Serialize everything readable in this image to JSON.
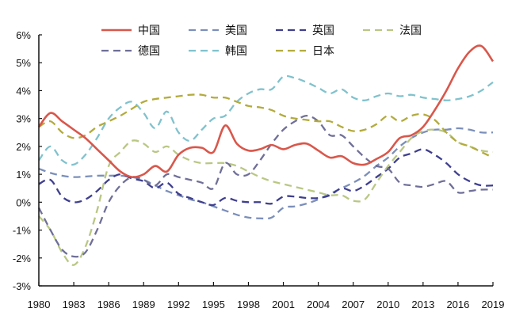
{
  "chart_data": {
    "type": "line",
    "title": "",
    "xlabel": "",
    "ylabel": "",
    "x": [
      1980,
      1981,
      1982,
      1983,
      1984,
      1985,
      1986,
      1987,
      1988,
      1989,
      1990,
      1991,
      1992,
      1993,
      1994,
      1995,
      1996,
      1997,
      1998,
      1999,
      2000,
      2001,
      2002,
      2003,
      2004,
      2005,
      2006,
      2007,
      2008,
      2009,
      2010,
      2011,
      2012,
      2013,
      2014,
      2015,
      2016,
      2017,
      2018,
      2019
    ],
    "x_ticks": [
      "1980",
      "1983",
      "1986",
      "1989",
      "1992",
      "1995",
      "1998",
      "2001",
      "2004",
      "2007",
      "2010",
      "2013",
      "2016",
      "2019"
    ],
    "y_ticks": [
      "6%",
      "5%",
      "4%",
      "3%",
      "2%",
      "1%",
      "0%",
      "-1%",
      "-2%",
      "-3%"
    ],
    "ylim": [
      -3,
      6
    ],
    "y_unit": "%",
    "grid": false,
    "legend_position": "top",
    "series": [
      {
        "name": "中国",
        "color": "#d9574b",
        "style": "solid",
        "values": [
          2.7,
          3.2,
          2.9,
          2.6,
          2.3,
          1.9,
          1.5,
          1.1,
          0.9,
          1.0,
          1.3,
          1.1,
          1.7,
          1.95,
          1.95,
          1.8,
          2.75,
          2.1,
          1.85,
          1.9,
          2.05,
          1.9,
          2.05,
          2.1,
          1.85,
          1.6,
          1.65,
          1.4,
          1.35,
          1.55,
          1.8,
          2.3,
          2.4,
          2.7,
          3.3,
          4.0,
          4.8,
          5.4,
          5.6,
          5.05
        ]
      },
      {
        "name": "美国",
        "color": "#7b8fba",
        "style": "dashed",
        "values": [
          1.2,
          1.05,
          0.95,
          0.9,
          0.92,
          0.95,
          0.95,
          0.95,
          0.9,
          0.8,
          0.6,
          0.4,
          0.25,
          0.1,
          0.0,
          -0.15,
          -0.3,
          -0.45,
          -0.55,
          -0.58,
          -0.55,
          -0.2,
          -0.15,
          -0.05,
          0.1,
          0.3,
          0.5,
          0.7,
          0.95,
          1.3,
          1.6,
          2.0,
          2.3,
          2.5,
          2.6,
          2.6,
          2.65,
          2.6,
          2.5,
          2.5
        ]
      },
      {
        "name": "英国",
        "color": "#3f3f8e",
        "style": "dashed",
        "values": [
          0.65,
          0.8,
          0.2,
          0.0,
          0.1,
          0.4,
          0.8,
          1.0,
          0.85,
          0.75,
          0.5,
          0.7,
          0.3,
          0.15,
          0.0,
          -0.1,
          0.15,
          0.05,
          0.0,
          0.0,
          -0.05,
          0.2,
          0.2,
          0.15,
          0.15,
          0.25,
          0.5,
          0.4,
          0.6,
          0.9,
          1.2,
          1.6,
          1.75,
          1.9,
          1.7,
          1.4,
          1.0,
          0.75,
          0.6,
          0.6
        ]
      },
      {
        "name": "法国",
        "color": "#b9c783",
        "style": "dashed",
        "values": [
          -0.5,
          -1.0,
          -1.8,
          -2.25,
          -1.6,
          -0.3,
          1.3,
          1.8,
          2.2,
          2.1,
          1.8,
          2.0,
          1.7,
          1.5,
          1.4,
          1.4,
          1.4,
          1.3,
          1.1,
          0.9,
          0.75,
          0.65,
          0.55,
          0.45,
          0.35,
          0.25,
          0.25,
          0.05,
          0.1,
          0.7,
          1.3,
          1.8,
          2.3,
          2.55,
          2.6,
          2.5,
          2.15,
          2.0,
          1.85,
          1.8
        ]
      },
      {
        "name": "德国",
        "color": "#6f6f98",
        "style": "dashed",
        "values": [
          -0.2,
          -1.0,
          -1.7,
          -1.95,
          -1.8,
          -1.0,
          0.0,
          0.6,
          0.9,
          0.8,
          0.6,
          1.0,
          0.9,
          0.8,
          0.7,
          0.5,
          1.4,
          1.0,
          1.0,
          1.5,
          2.1,
          2.6,
          2.9,
          3.1,
          2.9,
          2.4,
          2.4,
          2.0,
          1.6,
          1.3,
          1.2,
          0.7,
          0.6,
          0.55,
          0.65,
          0.75,
          0.35,
          0.4,
          0.45,
          0.45
        ]
      },
      {
        "name": "韩国",
        "color": "#80c2cd",
        "style": "dashed",
        "values": [
          1.5,
          2.0,
          1.5,
          1.35,
          1.7,
          2.3,
          3.0,
          3.4,
          3.6,
          3.2,
          2.65,
          3.25,
          2.5,
          2.2,
          2.6,
          3.0,
          3.1,
          3.6,
          3.9,
          4.05,
          4.05,
          4.5,
          4.45,
          4.3,
          4.1,
          3.9,
          4.05,
          3.75,
          3.65,
          3.8,
          3.9,
          3.8,
          3.85,
          3.75,
          3.7,
          3.65,
          3.7,
          3.8,
          4.0,
          4.3
        ]
      },
      {
        "name": "日本",
        "color": "#b3ab3c",
        "style": "dashed",
        "values": [
          2.7,
          2.9,
          2.5,
          2.3,
          2.4,
          2.7,
          2.9,
          3.1,
          3.35,
          3.6,
          3.7,
          3.75,
          3.8,
          3.85,
          3.85,
          3.75,
          3.75,
          3.6,
          3.45,
          3.4,
          3.3,
          3.1,
          3.0,
          2.95,
          2.9,
          2.9,
          2.7,
          2.55,
          2.6,
          2.8,
          3.1,
          2.9,
          3.1,
          3.15,
          2.95,
          2.5,
          2.15,
          2.0,
          1.8,
          1.6
        ]
      }
    ]
  }
}
